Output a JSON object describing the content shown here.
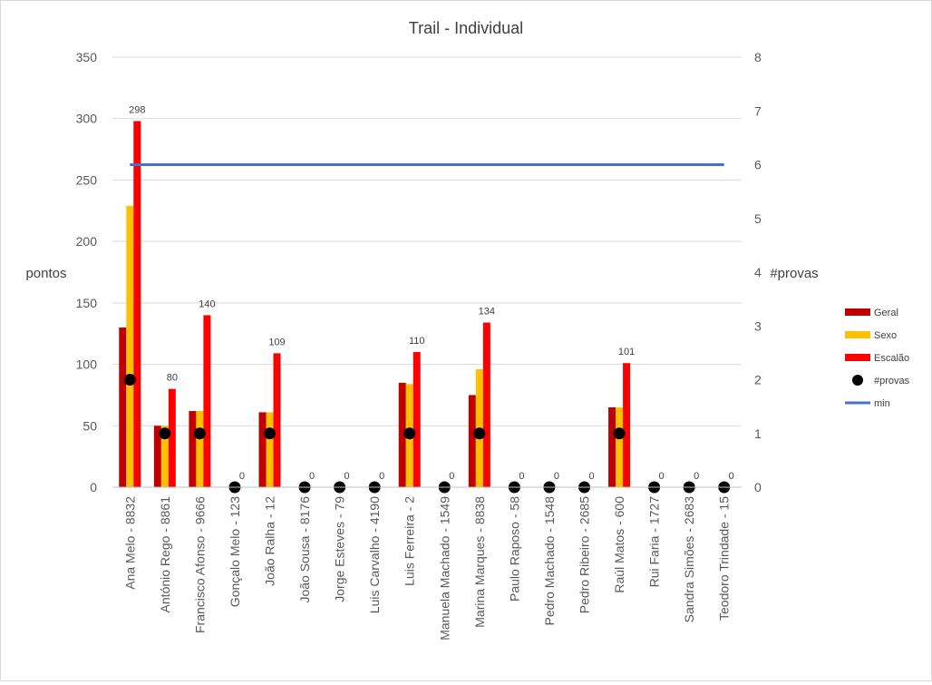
{
  "chart_data": {
    "type": "bar",
    "title": "Trail - Individual",
    "ylabel": "pontos",
    "y2label": "#provas",
    "ylim": [
      0,
      350
    ],
    "y2lim": [
      0,
      8
    ],
    "yticks": [
      0,
      50,
      100,
      150,
      200,
      250,
      300,
      350
    ],
    "y2ticks": [
      0,
      1,
      2,
      3,
      4,
      5,
      6,
      7,
      8
    ],
    "grid": true,
    "legend_position": "right",
    "categories": [
      "Ana Melo - 8832",
      "António Rego - 8861",
      "Francisco Afonso - 9666",
      "Gonçalo Melo - 123",
      "João Ralha - 12",
      "João Sousa - 8176",
      "Jorge Esteves - 79",
      "Luis Carvalho - 4190",
      "Luis Ferreira - 2",
      "Manuela Machado - 1549",
      "Marina Marques - 8838",
      "Paulo Raposo - 58",
      "Pedro Machado - 1548",
      "Pedro Ribeiro - 2685",
      "Raúl Matos - 600",
      "Rui Faria - 1727",
      "Sandra Simões - 2683",
      "Teodoro Trindade - 15"
    ],
    "series": [
      {
        "name": "Geral",
        "kind": "bar",
        "axis": "left",
        "color": "#c00000",
        "values": [
          130,
          50,
          62,
          0,
          61,
          0,
          0,
          0,
          85,
          0,
          75,
          0,
          0,
          0,
          65,
          0,
          0,
          0
        ]
      },
      {
        "name": "Sexo",
        "kind": "bar",
        "axis": "left",
        "color": "#ffc000",
        "values": [
          229,
          50,
          62,
          0,
          61,
          0,
          0,
          0,
          84,
          0,
          96,
          0,
          0,
          0,
          65,
          0,
          0,
          0
        ]
      },
      {
        "name": "Escalão",
        "kind": "bar",
        "axis": "left",
        "color": "#ff0000",
        "values": [
          298,
          80,
          140,
          0,
          109,
          0,
          0,
          0,
          110,
          0,
          134,
          0,
          0,
          0,
          101,
          0,
          0,
          0
        ],
        "data_labels": [
          "298",
          "80",
          "140",
          "0",
          "109",
          "0",
          "0",
          "0",
          "110",
          "0",
          "134",
          "0",
          "0",
          "0",
          "101",
          "0",
          "0",
          "0"
        ]
      },
      {
        "name": "#provas",
        "kind": "marker",
        "axis": "right",
        "color": "#000000",
        "values": [
          2,
          1,
          1,
          0,
          1,
          0,
          0,
          0,
          1,
          0,
          1,
          0,
          0,
          0,
          1,
          0,
          0,
          0
        ]
      },
      {
        "name": "min",
        "kind": "line",
        "axis": "right",
        "color": "#4472c4",
        "values": [
          6,
          6,
          6,
          6,
          6,
          6,
          6,
          6,
          6,
          6,
          6,
          6,
          6,
          6,
          6,
          6,
          6,
          6
        ]
      }
    ]
  }
}
